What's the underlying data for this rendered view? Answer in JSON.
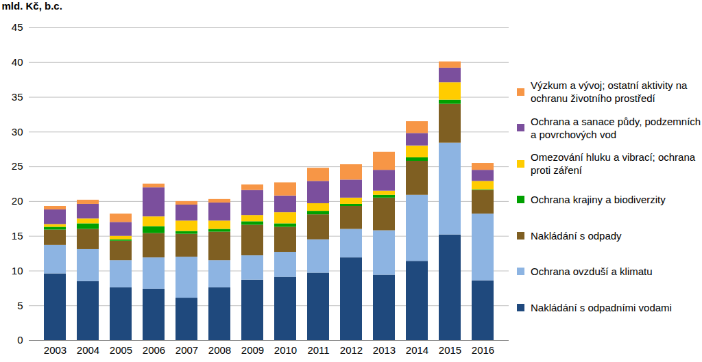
{
  "chart_data": {
    "type": "bar",
    "ylabel": "mld. Kč, b.c.",
    "categories": [
      "2003",
      "2004",
      "2005",
      "2006",
      "2007",
      "2008",
      "2009",
      "2010",
      "2011",
      "2012",
      "2013",
      "2014",
      "2015",
      "2016"
    ],
    "series": [
      {
        "name": "Nakládání s odpadními vodami",
        "color": "#1f497d",
        "values": [
          9.6,
          8.5,
          7.6,
          7.4,
          6.1,
          7.6,
          8.7,
          9.1,
          9.7,
          11.9,
          9.4,
          11.4,
          15.2,
          8.6
        ]
      },
      {
        "name": "Ochrana ovzduší a klimatu",
        "color": "#8db4e2",
        "values": [
          4.1,
          4.6,
          3.9,
          4.5,
          5.9,
          3.9,
          3.5,
          3.6,
          4.8,
          4.1,
          6.4,
          9.5,
          13.2,
          9.6
        ]
      },
      {
        "name": "Nakládání s odpady",
        "color": "#7f5f22",
        "values": [
          2.2,
          2.9,
          2.8,
          3.5,
          3.3,
          4.1,
          4.4,
          3.6,
          3.6,
          3.3,
          4.7,
          4.9,
          5.6,
          3.4
        ]
      },
      {
        "name": "Ochrana krajiny a biodiverzity",
        "color": "#00a000",
        "values": [
          0.4,
          0.8,
          0.2,
          1.0,
          0.4,
          0.4,
          0.5,
          0.5,
          0.5,
          0.3,
          0.4,
          0.5,
          0.6,
          0.1
        ]
      },
      {
        "name": "Omezování hluku a vibrací; ochrana proti záření",
        "color": "#ffcc00",
        "values": [
          0.4,
          0.7,
          0.5,
          1.4,
          1.5,
          1.2,
          0.9,
          1.6,
          1.1,
          0.9,
          0.6,
          1.7,
          2.5,
          1.2
        ]
      },
      {
        "name": "Ochrana a sanace půdy, podzemních a povrchových vod",
        "color": "#7b4f9d",
        "values": [
          2.1,
          2.1,
          2.0,
          4.2,
          2.3,
          2.6,
          3.6,
          2.4,
          3.2,
          2.6,
          3.0,
          1.8,
          2.1,
          1.6
        ]
      },
      {
        "name": "Výzkum a vývoj; ostatní aktivity na ochranu životního prostředí",
        "color": "#f79646",
        "values": [
          0.5,
          0.6,
          1.2,
          0.5,
          0.5,
          0.5,
          0.8,
          1.9,
          1.9,
          2.2,
          2.6,
          1.7,
          0.9,
          1.0
        ]
      }
    ],
    "ylim": [
      0,
      45
    ],
    "yticks": [
      0,
      5,
      10,
      15,
      20,
      25,
      30,
      35,
      40,
      45
    ],
    "stacked": true,
    "grid": true,
    "legend": "right"
  }
}
